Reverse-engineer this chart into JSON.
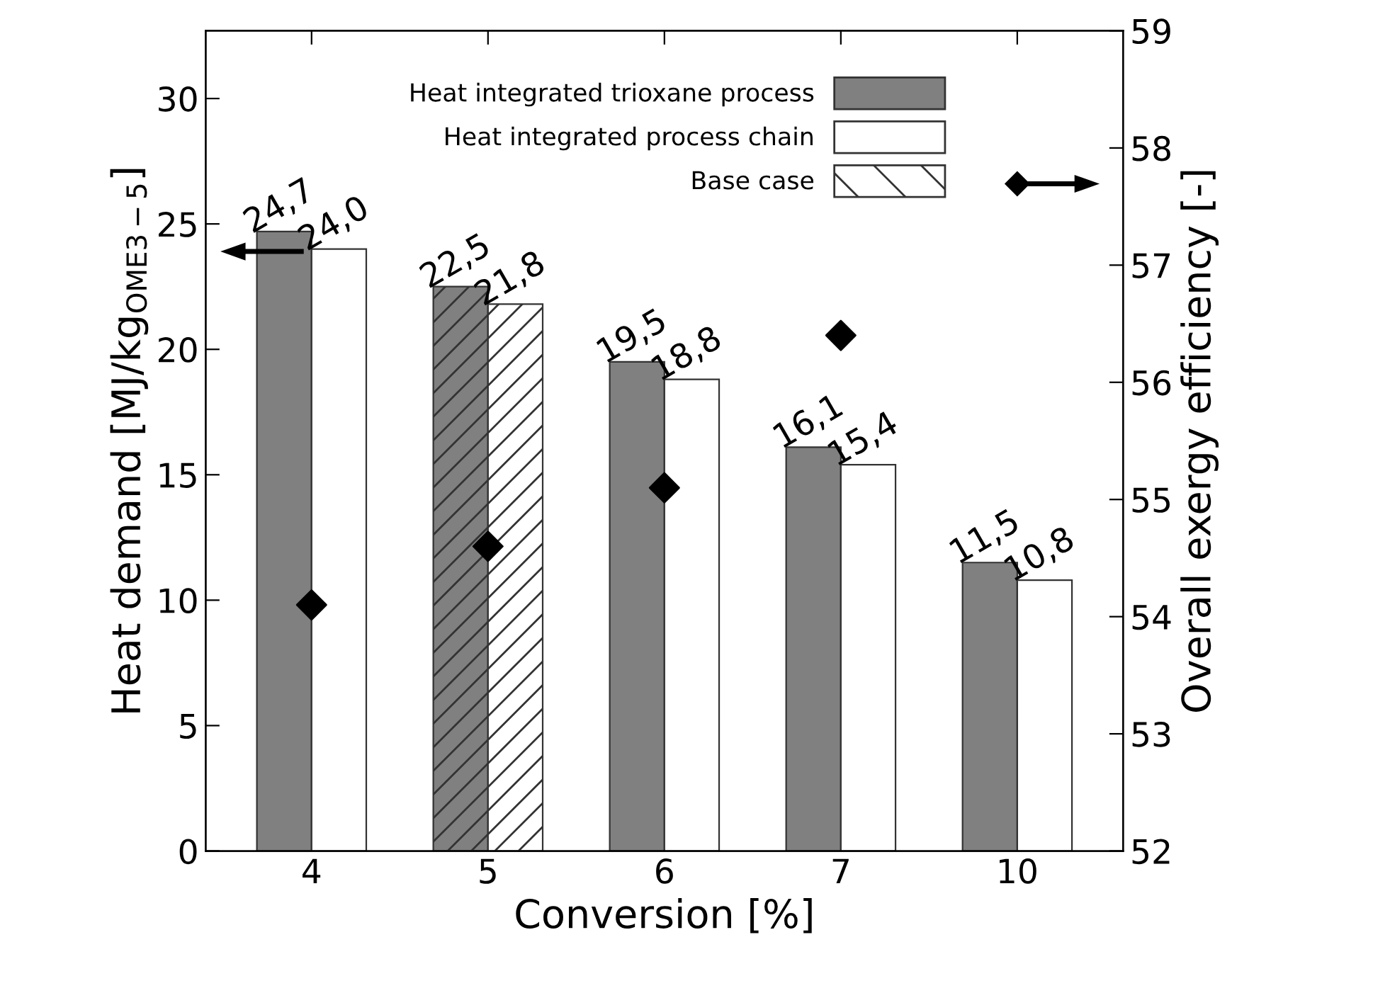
{
  "chart_data": {
    "type": "bar",
    "xlabel": "Conversion [%]",
    "ylabel": "Heat demand [MJ/kg$_{OME3−5}$]",
    "y2label": "Overall exergy efficiency [-]",
    "categories": [
      "4",
      "5",
      "6",
      "7",
      "10"
    ],
    "series": [
      {
        "name": "Heat integrated trioxane process",
        "color": "#808080",
        "values": [
          24.7,
          22.5,
          19.5,
          16.1,
          11.5
        ],
        "value_labels": [
          "24,7",
          "22,5",
          "19,5",
          "16,1",
          "11,5"
        ]
      },
      {
        "name": "Heat integrated process chain",
        "color": "#ffffff",
        "values": [
          24.0,
          21.8,
          18.8,
          15.4,
          10.8
        ],
        "value_labels": [
          "24,0",
          "21,8",
          "18,8",
          "15,4",
          "10,8"
        ]
      },
      {
        "type": "scatter",
        "axis": "y2",
        "color": "#000000",
        "marker": "diamond",
        "x": [
          "4",
          "5",
          "6",
          "7",
          "10"
        ],
        "values": [
          54.1,
          54.6,
          55.1,
          56.4,
          null
        ]
      }
    ],
    "annotations": [
      "Base case"
    ],
    "ylim": [
      0,
      32.7
    ],
    "yticks": [
      0,
      5,
      10,
      15,
      20,
      25,
      30
    ],
    "y2lim": [
      52,
      59
    ],
    "y2ticks": [
      52,
      53,
      54,
      55,
      56,
      57,
      58,
      59
    ],
    "legend": "top right",
    "grid": false
  }
}
